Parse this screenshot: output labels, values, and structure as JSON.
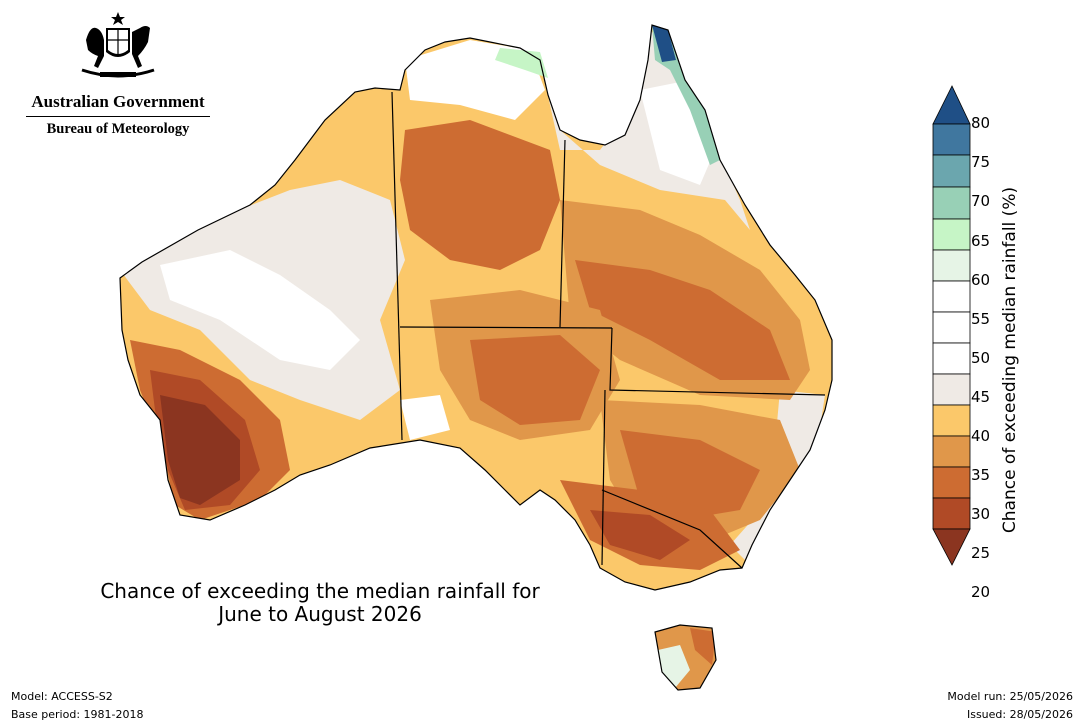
{
  "header": {
    "government": "Australian Government",
    "bureau": "Bureau of Meteorology",
    "crest_icon": "commonwealth-coat-of-arms-icon"
  },
  "title": {
    "line1": "Chance of exceeding the median rainfall for",
    "line2": "June to August 2026"
  },
  "footer": {
    "model": "Model: ACCESS-S2",
    "base_period": "Base period: 1981-2018",
    "model_run": "Model run: 25/05/2026",
    "issued": "Issued: 28/05/2026"
  },
  "colorbar": {
    "label": "Chance of exceeding median rainfall (%)",
    "ticks": [
      "20",
      "25",
      "30",
      "35",
      "40",
      "45",
      "50",
      "55",
      "60",
      "65",
      "70",
      "75",
      "80"
    ],
    "colors": [
      "#8b3520",
      "#b04a26",
      "#cd6c32",
      "#e0974a",
      "#fbc86a",
      "#efeae5",
      "#ffffff",
      "#ffffff",
      "#e6f4e6",
      "#c6f5c6",
      "#98d0b6",
      "#6ba6ae",
      "#40779f",
      "#1f4f86"
    ]
  }
}
